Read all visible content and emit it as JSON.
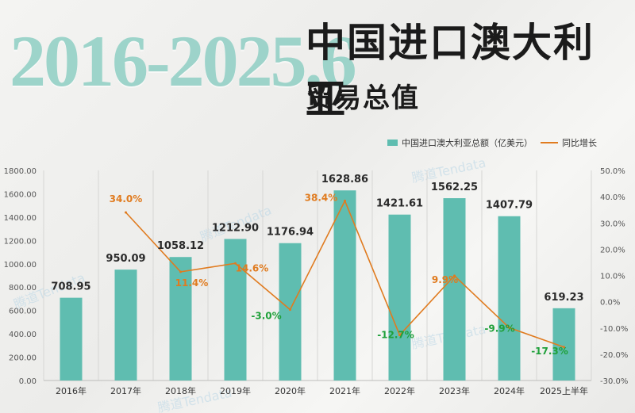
{
  "header": {
    "years": "2016-2025.6",
    "title": "中国进口澳大利亚",
    "subtitle": "贸易总值"
  },
  "legend": {
    "bar_label": "中国进口澳大利亚总额（亿美元）",
    "line_label": "同比增长"
  },
  "watermark": "腾道Tendata",
  "colors": {
    "bar": "#5fbdb0",
    "line": "#e07b1f",
    "positive_pct": "#e07b1f",
    "negative_pct": "#1fa03a"
  },
  "chart_data": {
    "type": "bar",
    "categories": [
      "2016年",
      "2017年",
      "2018年",
      "2019年",
      "2020年",
      "2021年",
      "2022年",
      "2023年",
      "2024年",
      "2025上半年"
    ],
    "series": [
      {
        "name": "中国进口澳大利亚总额（亿美元）",
        "type": "bar",
        "axis": "left",
        "values": [
          708.95,
          950.09,
          1058.12,
          1212.9,
          1176.94,
          1628.86,
          1421.61,
          1562.25,
          1407.79,
          619.23
        ],
        "labels": [
          "708.95",
          "950.09",
          "1058.12",
          "1212.90",
          "1176.94",
          "1628.86",
          "1421.61",
          "1562.25",
          "1407.79",
          "619.23"
        ]
      },
      {
        "name": "同比增长",
        "type": "line",
        "axis": "right",
        "values": [
          null,
          34.0,
          11.4,
          14.6,
          -3.0,
          38.4,
          -12.7,
          9.9,
          -9.9,
          -17.3
        ],
        "labels": [
          null,
          "34.0%",
          "11.4%",
          "14.6%",
          "-3.0%",
          "38.4%",
          "-12.7%",
          "9.9%",
          "-9.9%",
          "-17.3%"
        ]
      }
    ],
    "left_axis": {
      "min": 0,
      "max": 1800,
      "step": 200,
      "ticks": [
        "0.00",
        "200.00",
        "400.00",
        "600.00",
        "800.00",
        "1000.00",
        "1200.00",
        "1400.00",
        "1600.00",
        "1800.00"
      ]
    },
    "right_axis": {
      "min": -30,
      "max": 50,
      "step": 10,
      "ticks": [
        "-30.0%",
        "-20.0%",
        "-10.0%",
        "0.0%",
        "10.0%",
        "20.0%",
        "30.0%",
        "40.0%",
        "50.0%"
      ]
    },
    "legend_position": "top-right",
    "grid": "vertical"
  }
}
